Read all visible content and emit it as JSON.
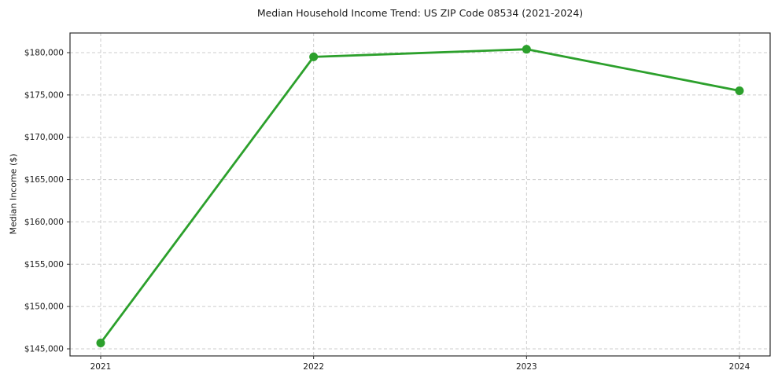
{
  "chart_data": {
    "type": "line",
    "title": "Median Household Income Trend: US ZIP Code 08534 (2021-2024)",
    "xlabel": "",
    "ylabel": "Median Income ($)",
    "x": [
      2021,
      2022,
      2023,
      2024
    ],
    "values": [
      145700,
      179500,
      180400,
      175500
    ],
    "xtick_labels": [
      "2021",
      "2022",
      "2023",
      "2024"
    ],
    "ytick_values": [
      145000,
      150000,
      155000,
      160000,
      165000,
      170000,
      175000,
      180000
    ],
    "ytick_labels": [
      "$145,000",
      "$150,000",
      "$155,000",
      "$160,000",
      "$165,000",
      "$170,000",
      "$175,000",
      "$180,000"
    ],
    "xlim": [
      2020.856,
      2024.144
    ],
    "ylim": [
      144165,
      182320
    ],
    "grid": "dashed",
    "legend": "none",
    "line_color": "#2ca02c",
    "grid_color": "#cccccc",
    "axis_color": "#2d2d2d",
    "text_color": "#1a1a1a",
    "background": "#ffffff",
    "marker": "circle"
  }
}
